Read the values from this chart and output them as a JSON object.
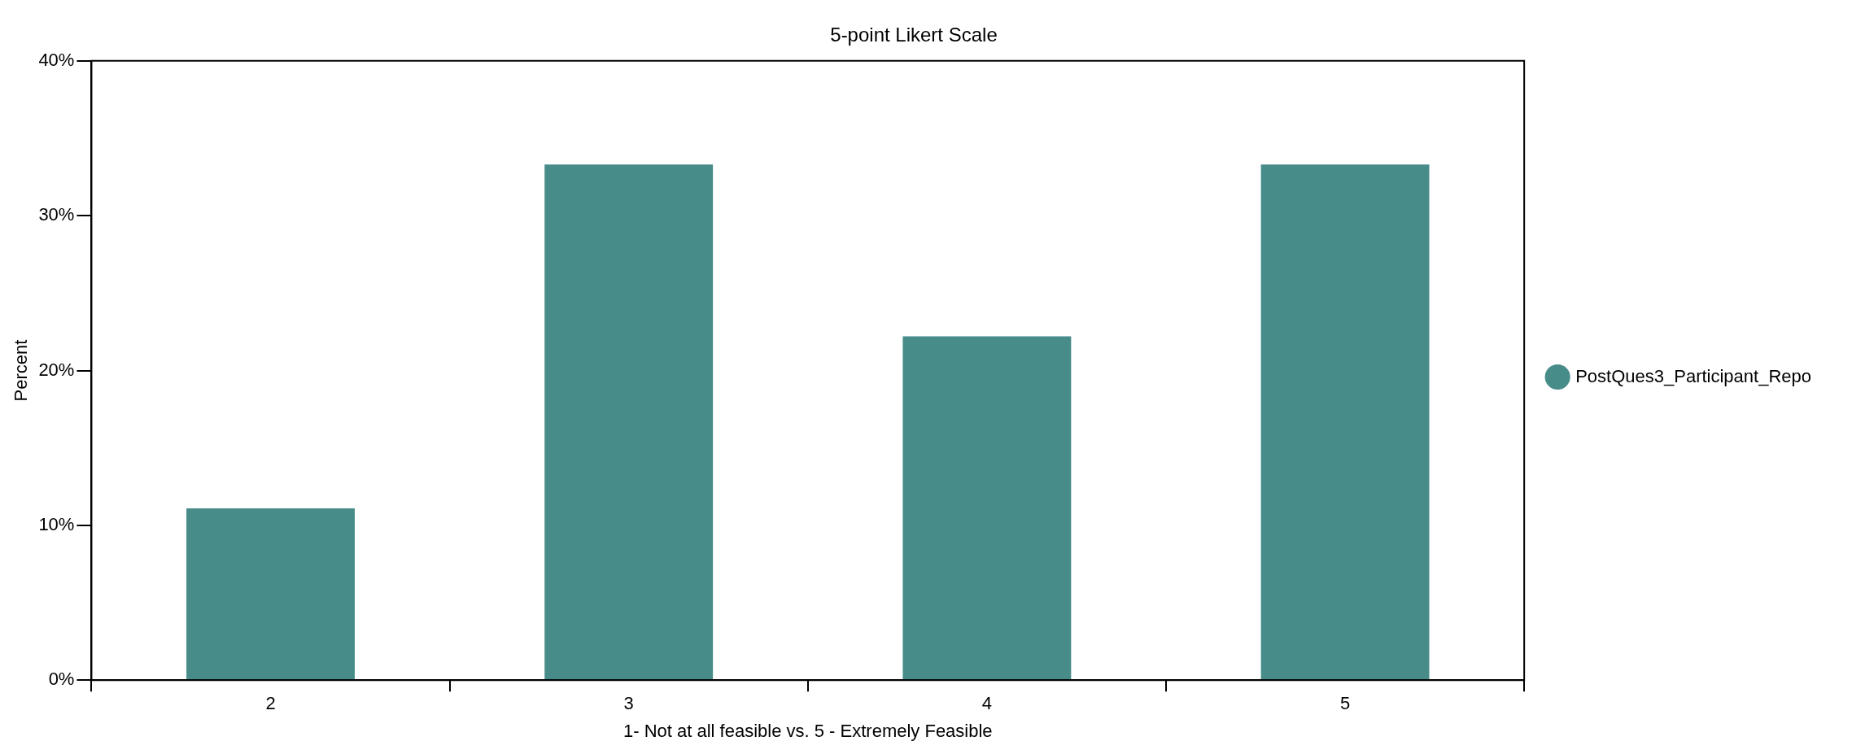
{
  "chart_data": {
    "type": "bar",
    "title": "5-point Likert Scale",
    "xlabel": "1- Not at all feasible vs. 5 - Extremely Feasible",
    "ylabel": "Percent",
    "categories": [
      "2",
      "3",
      "4",
      "5"
    ],
    "series": [
      {
        "name": "PostQues3_Participant_Repo",
        "color": "#478c89",
        "values": [
          11.1,
          33.3,
          22.2,
          33.3
        ]
      }
    ],
    "ylim": [
      0,
      40
    ],
    "yticks": [
      {
        "value": 0,
        "label": "0%"
      },
      {
        "value": 10,
        "label": "10%"
      },
      {
        "value": 20,
        "label": "20%"
      },
      {
        "value": 30,
        "label": "30%"
      },
      {
        "value": 40,
        "label": "40%"
      }
    ],
    "grid": false,
    "legend": "right"
  }
}
